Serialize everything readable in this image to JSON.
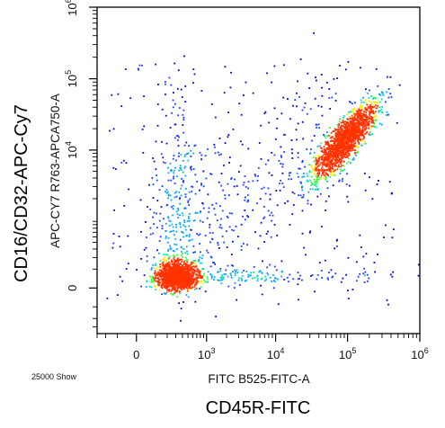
{
  "chart_data": {
    "type": "scatter",
    "style": "flow-cytometry density dot plot (blue → cyan → green → yellow → red by density)",
    "scale": "biexponential (log with linear region around 0)",
    "x_axis": {
      "channel_label": "FITC B525-FITC-A",
      "marker_label": "CD45R-FITC",
      "ticks": [
        {
          "value": 0,
          "base": "0",
          "exp": ""
        },
        {
          "value": 1000,
          "base": "10",
          "exp": "3"
        },
        {
          "value": 10000,
          "base": "10",
          "exp": "4"
        },
        {
          "value": 100000,
          "base": "10",
          "exp": "5"
        },
        {
          "value": 1000000,
          "base": "10",
          "exp": "6"
        }
      ],
      "range": [
        -300,
        1000000
      ]
    },
    "y_axis": {
      "channel_label": "APC-CY7 R763-APCA750-A",
      "marker_label": "CD16/CD32-APC-Cy7",
      "ticks": [
        {
          "value": 0,
          "base": "0",
          "exp": ""
        },
        {
          "value": 10000,
          "base": "10",
          "exp": "4"
        },
        {
          "value": 100000,
          "base": "10",
          "exp": "5"
        },
        {
          "value": 1000000,
          "base": "10",
          "exp": "6"
        }
      ],
      "range": [
        -400,
        1000000
      ]
    },
    "event_count_label": "25000 Show",
    "populations": [
      {
        "x_center": 300,
        "y_center": 60,
        "events_share": 0.42,
        "description": "double-negative cluster near origin"
      },
      {
        "x_center": 90000,
        "y_center": 14000,
        "events_share": 0.44,
        "description": "CD45R+ CD16/CD32+ cluster"
      },
      {
        "x_center": 600,
        "y_center": 4000,
        "events_share": 0.14,
        "description": "diffuse scattered events"
      }
    ],
    "density_colors": [
      "#0000cc",
      "#1a3cff",
      "#00a8ff",
      "#00e0c0",
      "#33ff33",
      "#ffee00",
      "#ff3300"
    ]
  }
}
